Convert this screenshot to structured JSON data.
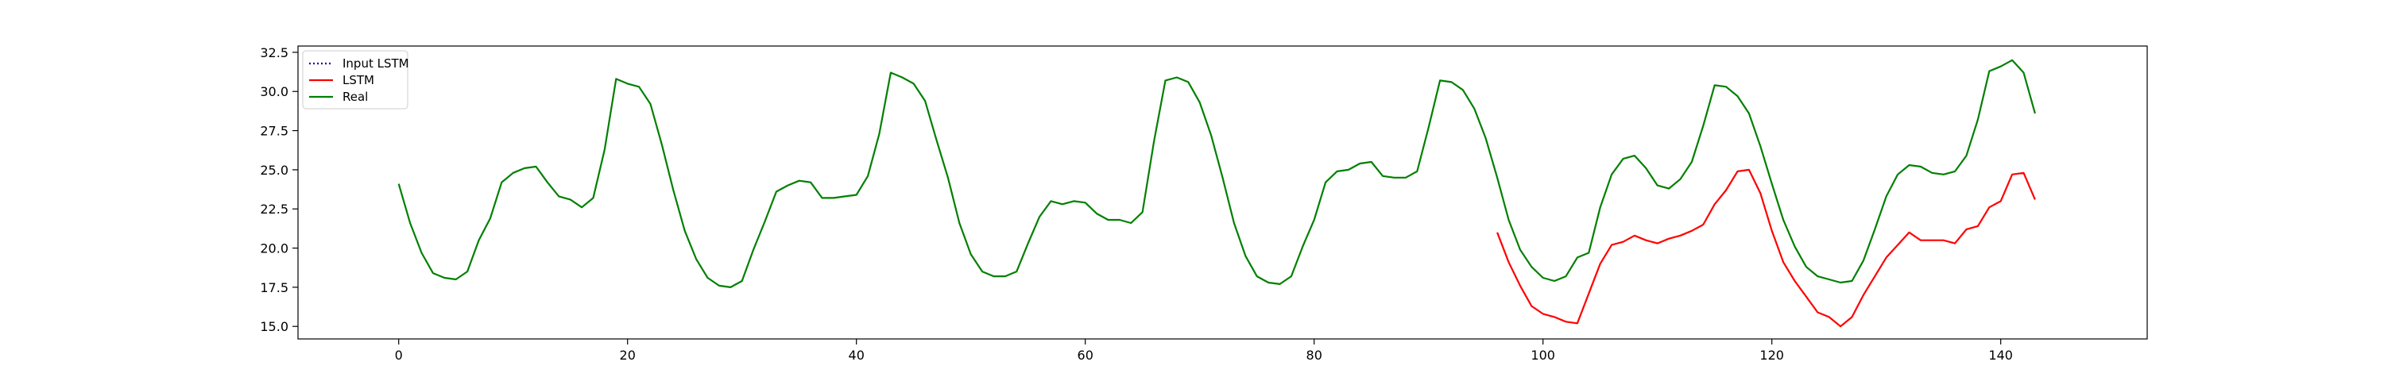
{
  "chart_data": {
    "type": "line",
    "title": "",
    "xlabel": "",
    "ylabel": "",
    "xlim": [
      -8.8,
      152.8
    ],
    "ylim": [
      14.2,
      32.9
    ],
    "grid": false,
    "legend_position": "top-left",
    "x_ticks": [
      0,
      20,
      40,
      60,
      80,
      100,
      120,
      140
    ],
    "x_tick_labels": [
      "0",
      "20",
      "40",
      "60",
      "80",
      "100",
      "120",
      "140"
    ],
    "y_ticks": [
      15.0,
      17.5,
      20.0,
      22.5,
      25.0,
      27.5,
      30.0,
      32.5
    ],
    "y_tick_labels": [
      "15.0",
      "17.5",
      "20.0",
      "22.5",
      "25.0",
      "27.5",
      "30.0",
      "32.5"
    ],
    "series": [
      {
        "name": "Input LSTM",
        "color": "#0000bf",
        "style": "dotted",
        "x": [],
        "y": []
      },
      {
        "name": "LSTM",
        "color": "#ff0000",
        "style": "solid",
        "x": [
          96,
          97,
          98,
          99,
          100,
          101,
          102,
          103,
          104,
          105,
          106,
          107,
          108,
          109,
          110,
          111,
          112,
          113,
          114,
          115,
          116,
          117,
          118,
          119,
          120,
          121,
          122,
          123,
          124,
          125,
          126,
          127,
          128,
          129,
          130,
          131,
          132,
          133,
          134,
          135,
          136,
          137,
          138,
          139,
          140,
          141,
          142,
          143
        ],
        "y": [
          21.0,
          19.1,
          17.6,
          16.3,
          15.8,
          15.6,
          15.3,
          15.2,
          17.1,
          19.0,
          20.2,
          20.4,
          20.8,
          20.5,
          20.3,
          20.6,
          20.8,
          21.1,
          21.5,
          22.8,
          23.7,
          24.9,
          25.0,
          23.5,
          21.1,
          19.1,
          17.9,
          16.9,
          15.9,
          15.6,
          15.0,
          15.6,
          17.0,
          18.2,
          19.4,
          20.2,
          21.0,
          20.5,
          20.5,
          20.5,
          20.3,
          21.2,
          21.4,
          22.6,
          23.0,
          24.7,
          24.8,
          23.1
        ]
      },
      {
        "name": "Real",
        "color": "#008000",
        "style": "solid",
        "x": [
          0,
          1,
          2,
          3,
          4,
          5,
          6,
          7,
          8,
          9,
          10,
          11,
          12,
          13,
          14,
          15,
          16,
          17,
          18,
          19,
          20,
          21,
          22,
          23,
          24,
          25,
          26,
          27,
          28,
          29,
          30,
          31,
          32,
          33,
          34,
          35,
          36,
          37,
          38,
          39,
          40,
          41,
          42,
          43,
          44,
          45,
          46,
          47,
          48,
          49,
          50,
          51,
          52,
          53,
          54,
          55,
          56,
          57,
          58,
          59,
          60,
          61,
          62,
          63,
          64,
          65,
          66,
          67,
          68,
          69,
          70,
          71,
          72,
          73,
          74,
          75,
          76,
          77,
          78,
          79,
          80,
          81,
          82,
          83,
          84,
          85,
          86,
          87,
          88,
          89,
          90,
          91,
          92,
          93,
          94,
          95,
          96,
          97,
          98,
          99,
          100,
          101,
          102,
          103,
          104,
          105,
          106,
          107,
          108,
          109,
          110,
          111,
          112,
          113,
          114,
          115,
          116,
          117,
          118,
          119,
          120,
          121,
          122,
          123,
          124,
          125,
          126,
          127,
          128,
          129,
          130,
          131,
          132,
          133,
          134,
          135,
          136,
          137,
          138,
          139,
          140,
          141,
          142,
          143
        ],
        "y": [
          24.1,
          21.6,
          19.7,
          18.4,
          18.1,
          18.0,
          18.5,
          20.5,
          21.9,
          24.2,
          24.8,
          25.1,
          25.2,
          24.2,
          23.3,
          23.1,
          22.6,
          23.2,
          26.3,
          30.8,
          30.5,
          30.3,
          29.2,
          26.6,
          23.7,
          21.1,
          19.3,
          18.1,
          17.6,
          17.5,
          17.9,
          19.9,
          21.7,
          23.6,
          24.0,
          24.3,
          24.2,
          23.2,
          23.2,
          23.3,
          23.4,
          24.6,
          27.3,
          31.2,
          30.9,
          30.5,
          29.4,
          26.9,
          24.5,
          21.6,
          19.6,
          18.5,
          18.2,
          18.2,
          18.5,
          20.3,
          22.0,
          23.0,
          22.8,
          23.0,
          22.9,
          22.2,
          21.8,
          21.8,
          21.6,
          22.3,
          26.8,
          30.7,
          30.9,
          30.6,
          29.3,
          27.2,
          24.5,
          21.6,
          19.5,
          18.2,
          17.8,
          17.7,
          18.2,
          20.1,
          21.8,
          24.2,
          24.9,
          25.0,
          25.4,
          25.5,
          24.6,
          24.5,
          24.5,
          24.9,
          27.7,
          30.7,
          30.6,
          30.1,
          28.9,
          27.0,
          24.5,
          21.8,
          19.9,
          18.8,
          18.1,
          17.9,
          18.2,
          19.4,
          19.7,
          22.6,
          24.7,
          25.7,
          25.9,
          25.1,
          24.0,
          23.8,
          24.4,
          25.5,
          27.8,
          30.4,
          30.3,
          29.7,
          28.6,
          26.5,
          24.1,
          21.8,
          20.1,
          18.8,
          18.2,
          18.0,
          17.8,
          17.9,
          19.2,
          21.2,
          23.3,
          24.7,
          25.3,
          25.2,
          24.8,
          24.7,
          24.9,
          25.9,
          28.2,
          31.3,
          31.6,
          32.0,
          31.2,
          28.6
        ]
      }
    ]
  }
}
